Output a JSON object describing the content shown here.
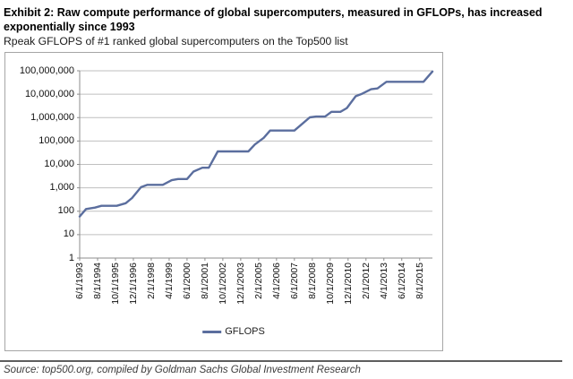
{
  "header": {
    "title": "Exhibit 2: Raw compute performance of global supercomputers, measured in GFLOPs, has increased exponentially since 1993",
    "subtitle": "Rpeak GFLOPS of #1 ranked global supercomputers on the Top500 list"
  },
  "legend": {
    "label": "GFLOPS"
  },
  "footer": {
    "source": "Source: top500.org, compiled by Goldman Sachs Global Investment Research"
  },
  "colors": {
    "series_line": "#5b6e9e",
    "gridline": "#bfbfbf",
    "axis": "#8c8c8c",
    "frame_border": "#a6a6a6",
    "text": "#111111"
  },
  "chart_data": {
    "type": "line",
    "title": "Rpeak GFLOPS of #1 ranked global supercomputers on the Top500 list",
    "xlabel": "",
    "ylabel": "",
    "y_scale": "log",
    "ylim": [
      1,
      100000000
    ],
    "grid": true,
    "legend_position": "bottom-center",
    "ytick_labels": [
      "100,000,000",
      "10,000,000",
      "1,000,000",
      "100,000",
      "10,000",
      "1,000",
      "100",
      "10",
      "1"
    ],
    "xtick_labels": [
      "6/1/1993",
      "8/1/1994",
      "10/1/1995",
      "12/1/1996",
      "2/1/1998",
      "4/1/1999",
      "6/1/2000",
      "8/1/2001",
      "10/1/2002",
      "12/1/2003",
      "2/1/2005",
      "4/1/2006",
      "6/1/2007",
      "8/1/2008",
      "10/1/2009",
      "12/1/2010",
      "2/1/2012",
      "4/1/2013",
      "6/1/2014",
      "8/1/2015"
    ],
    "series": [
      {
        "name": "GFLOPS",
        "dates": [
          "6/1/1993",
          "11/1/1993",
          "6/1/1994",
          "11/1/1994",
          "6/1/1995",
          "11/1/1995",
          "6/1/1996",
          "11/1/1996",
          "6/1/1997",
          "11/1/1997",
          "6/1/1998",
          "11/1/1998",
          "6/1/1999",
          "11/1/1999",
          "6/1/2000",
          "11/1/2000",
          "6/1/2001",
          "11/1/2001",
          "6/1/2002",
          "11/1/2002",
          "6/1/2003",
          "11/1/2003",
          "6/1/2004",
          "11/1/2004",
          "6/1/2005",
          "11/1/2005",
          "6/1/2006",
          "11/1/2006",
          "6/1/2007",
          "11/1/2007",
          "6/1/2008",
          "11/1/2008",
          "6/1/2009",
          "11/1/2009",
          "6/1/2010",
          "11/1/2010",
          "6/1/2011",
          "11/1/2011",
          "6/1/2012",
          "11/1/2012",
          "6/1/2013",
          "11/1/2013",
          "6/1/2014",
          "11/1/2014",
          "6/1/2015",
          "11/1/2015",
          "6/1/2016"
        ],
        "values": [
          59.7,
          124,
          143.4,
          170,
          170,
          170,
          220.4,
          368.2,
          1068,
          1338,
          1338,
          1338,
          2121,
          2379,
          2379,
          4938,
          7226,
          7226,
          35860,
          35860,
          35860,
          35860,
          35860,
          70720,
          136800,
          280600,
          280600,
          280600,
          280600,
          478200,
          1026000,
          1105000,
          1105000,
          1759000,
          1759000,
          2566000,
          8162000,
          10510000,
          16324750,
          17590000,
          33862700,
          33862700,
          33862700,
          33862700,
          33862700,
          33862700,
          93014600
        ]
      }
    ]
  }
}
